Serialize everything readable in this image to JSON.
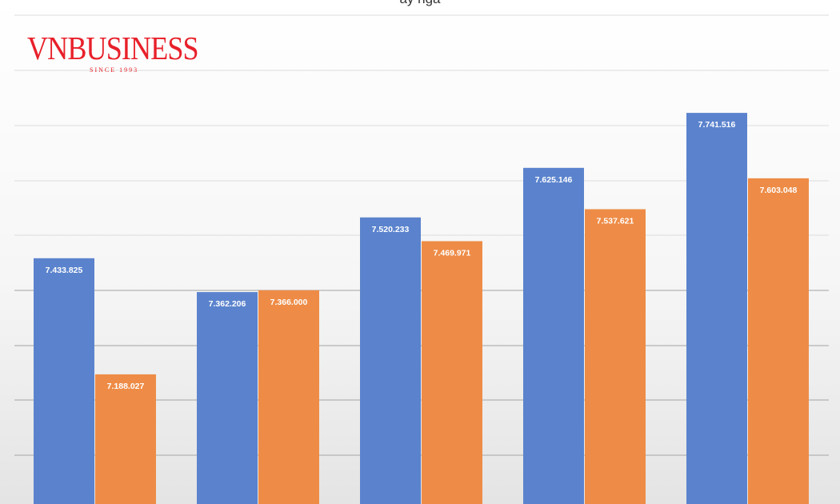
{
  "chart_data": {
    "type": "bar",
    "title_fragment": "ẩy ngâ",
    "categories": [
      "",
      "",
      "",
      "",
      ""
    ],
    "series": [
      {
        "color": "#5b83cd",
        "values": [
          7433825,
          7362206,
          7520233,
          7625146,
          7741516
        ],
        "labels": [
          "7.433.825",
          "7.362.206",
          "7.520.233",
          "7.625.146",
          "7.741.516"
        ]
      },
      {
        "color": "#ee8c47",
        "values": [
          7188027,
          7366000,
          7469971,
          7537621,
          7603048
        ],
        "labels": [
          "7.188.027",
          "7.366.000",
          "7.469.971",
          "7.537.621",
          "7.603.048"
        ]
      }
    ],
    "ylim": [
      6900000,
      7950000
    ],
    "grid": true,
    "legend": "none"
  },
  "logo": {
    "wordmark": "VNBUSINESS",
    "since": "SINCE 1993",
    "color": "#e8202a"
  }
}
